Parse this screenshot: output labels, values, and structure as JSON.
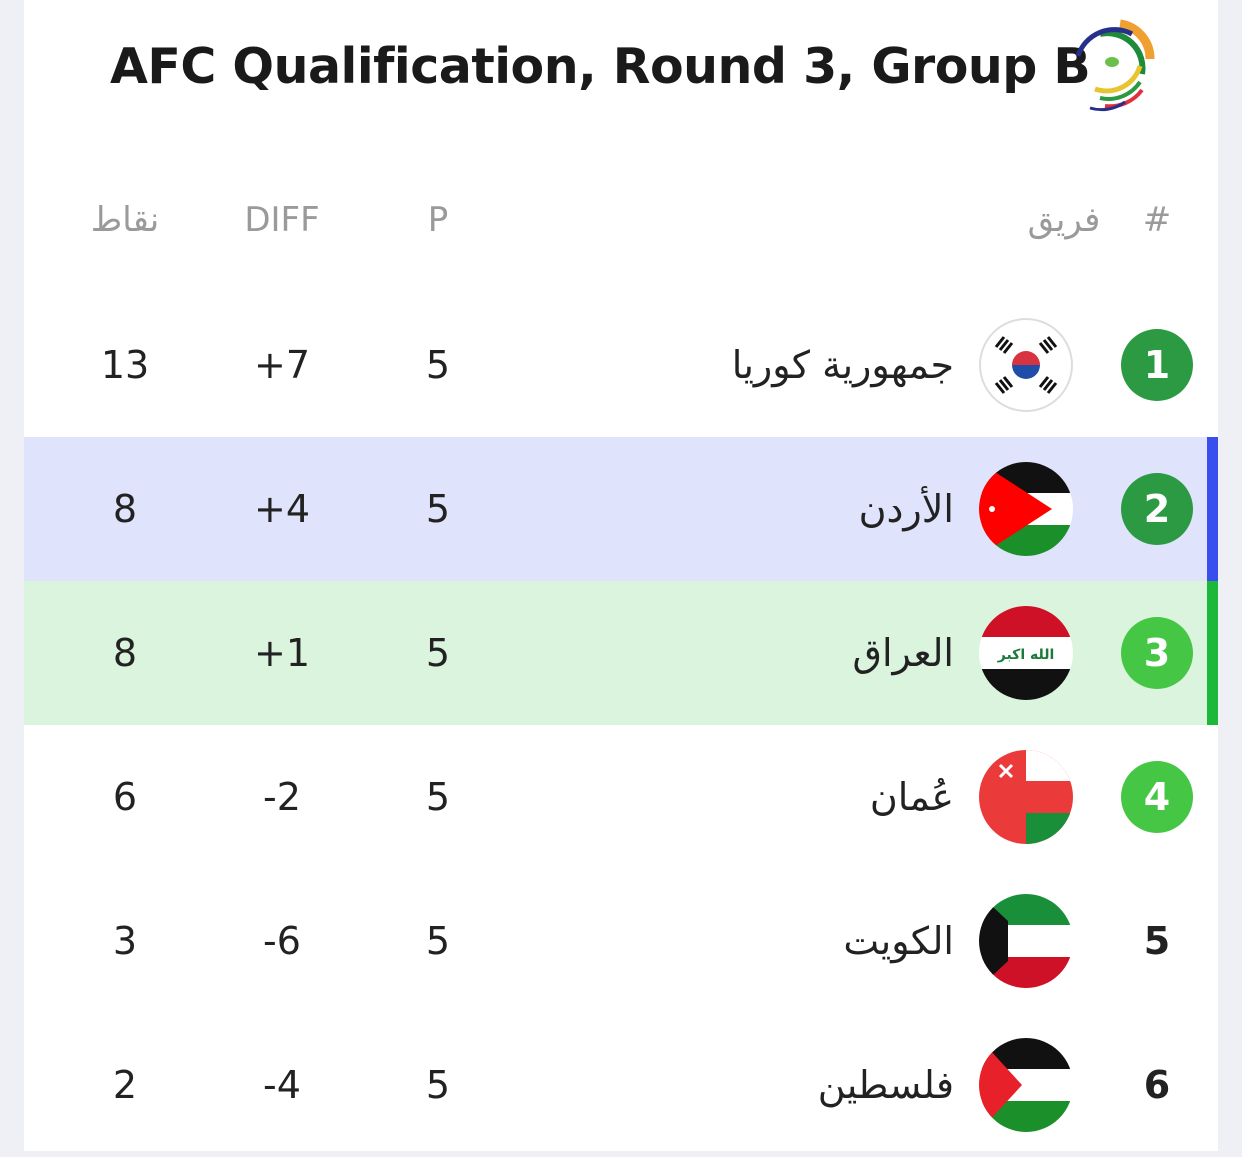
{
  "title": "AFC Qualification, Round 3, Group B",
  "logo": "afc-qualifiers-logo",
  "headers": {
    "rank": "#",
    "team": "فريق",
    "played": "P",
    "diff": "DIFF",
    "points": "نقاط"
  },
  "colors": {
    "badge_dark": "#2b9a43",
    "badge_light": "#45c645",
    "row2_bg": "#dfe3fb",
    "row3_bg": "#dbf4de",
    "row2_bar": "#3a4ef0",
    "row3_bar": "#1bb83a"
  },
  "rows": [
    {
      "rank": "1",
      "team": "جمهورية كوريا",
      "flag": "south-korea",
      "played": "5",
      "diff": "+7",
      "points": "13"
    },
    {
      "rank": "2",
      "team": "الأردن",
      "flag": "jordan",
      "played": "5",
      "diff": "+4",
      "points": "8"
    },
    {
      "rank": "3",
      "team": "العراق",
      "flag": "iraq",
      "played": "5",
      "diff": "+1",
      "points": "8",
      "flag_text": "الله اكبر"
    },
    {
      "rank": "4",
      "team": "عُمان",
      "flag": "oman",
      "played": "5",
      "diff": "-2",
      "points": "6"
    },
    {
      "rank": "5",
      "team": "الكويت",
      "flag": "kuwait",
      "played": "5",
      "diff": "-6",
      "points": "3"
    },
    {
      "rank": "6",
      "team": "فلسطين",
      "flag": "palestine",
      "played": "5",
      "diff": "-4",
      "points": "2"
    }
  ]
}
